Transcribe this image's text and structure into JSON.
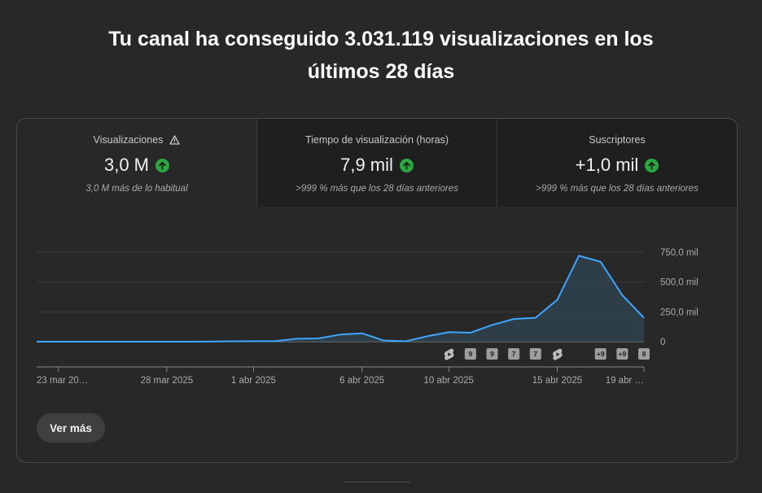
{
  "headline": {
    "line1": "Tu canal ha conseguido 3.031.119 visualizaciones en los",
    "line2": "últimos 28 días"
  },
  "metrics": [
    {
      "label": "Visualizaciones",
      "value": "3,0 M",
      "sub": "3,0 M más de lo habitual",
      "warning": true
    },
    {
      "label": "Tiempo de visualización (horas)",
      "value": "7,9 mil",
      "sub": ">999 % más que los 28 días anteriores",
      "warning": false
    },
    {
      "label": "Suscriptores",
      "value": "+1,0 mil",
      "sub": ">999 % más que los 28 días anteriores",
      "warning": false
    }
  ],
  "colors": {
    "line": "#3ea6ff",
    "up": "#2ba640",
    "area": "#2f4653"
  },
  "more_button": "Ver más",
  "chart_data": {
    "type": "area",
    "x": [
      "22 mar",
      "23 mar",
      "24 mar",
      "25 mar",
      "26 mar",
      "27 mar",
      "28 mar",
      "29 mar",
      "30 mar",
      "31 mar",
      "1 abr",
      "2 abr",
      "3 abr",
      "4 abr",
      "5 abr",
      "6 abr",
      "7 abr",
      "8 abr",
      "9 abr",
      "10 abr",
      "11 abr",
      "12 abr",
      "13 abr",
      "14 abr",
      "15 abr",
      "16 abr",
      "17 abr",
      "18 abr",
      "19 abr"
    ],
    "values": [
      0,
      0,
      0,
      0,
      0,
      0,
      0,
      0,
      500,
      3000,
      4000,
      5000,
      25000,
      27000,
      60000,
      70000,
      10000,
      3000,
      45000,
      80000,
      75000,
      140000,
      190000,
      200000,
      350000,
      720000,
      670000,
      390000,
      200000
    ],
    "xticks": [
      "23 mar 20…",
      "28 mar 2025",
      "1 abr 2025",
      "6 abr 2025",
      "10 abr 2025",
      "15 abr 2025",
      "19 abr …"
    ],
    "yticks": [
      "750,0 mil",
      "500,0 mil",
      "250,0 mil",
      "0"
    ],
    "ylim": [
      0,
      750000
    ],
    "markers": [
      {
        "x": "10 abr",
        "kind": "shorts",
        "label": ""
      },
      {
        "x": "11 abr",
        "kind": "count",
        "label": "9"
      },
      {
        "x": "12 abr",
        "kind": "count",
        "label": "9"
      },
      {
        "x": "13 abr",
        "kind": "count",
        "label": "7"
      },
      {
        "x": "14 abr",
        "kind": "count",
        "label": "7"
      },
      {
        "x": "15 abr",
        "kind": "shorts",
        "label": ""
      },
      {
        "x": "17 abr",
        "kind": "count",
        "label": "+9"
      },
      {
        "x": "18 abr",
        "kind": "count",
        "label": "+9"
      },
      {
        "x": "19 abr",
        "kind": "count",
        "label": "8"
      }
    ]
  }
}
